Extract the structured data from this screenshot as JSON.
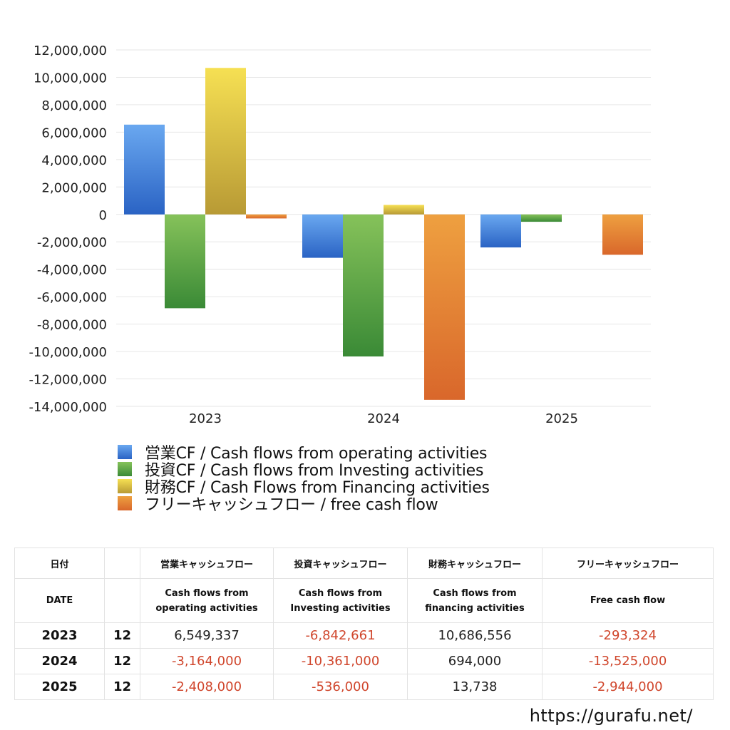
{
  "chart_data": {
    "type": "bar",
    "categories": [
      "2023",
      "2024",
      "2025"
    ],
    "ylim": [
      -14000000,
      12000000
    ],
    "yticks": [
      12000000,
      10000000,
      8000000,
      6000000,
      4000000,
      2000000,
      0,
      -2000000,
      -4000000,
      -6000000,
      -8000000,
      -10000000,
      -12000000,
      -14000000
    ],
    "grid": true,
    "legend_position": "bottom",
    "series": [
      {
        "name": "営業CF / Cash flows from operating activities",
        "values": [
          6549337,
          -3164000,
          -2408000
        ],
        "color_top": "#6aa8f0",
        "color_bottom": "#2a63c4"
      },
      {
        "name": "投資CF / Cash flows from Investing activities",
        "values": [
          -6842661,
          -10361000,
          -536000
        ],
        "color_top": "#86c25a",
        "color_bottom": "#3a8a36"
      },
      {
        "name": "財務CF / Cash Flows from Financing activities",
        "values": [
          10686556,
          694000,
          13738
        ],
        "color_top": "#f6e053",
        "color_bottom": "#b89a35"
      },
      {
        "name": "フリーキャッシュフロー / free cash flow",
        "values": [
          -293324,
          -13525000,
          -2944000
        ],
        "color_top": "#eea040",
        "color_bottom": "#d9672b"
      }
    ]
  },
  "table": {
    "header1": [
      "日付",
      "",
      "営業キャッシュフロー",
      "投資キャッシュフロー",
      "財務キャッシュフロー",
      "フリーキャッシュフロー"
    ],
    "header2": [
      "DATE",
      "",
      "Cash flows from|operating activities",
      "Cash flows from|Investing activities",
      "Cash flows from|financing activities",
      "Free cash flow"
    ],
    "rows": [
      {
        "year": "2023",
        "month": "12",
        "values": [
          "6,549,337",
          "-6,842,661",
          "10,686,556",
          "-293,324"
        ]
      },
      {
        "year": "2024",
        "month": "12",
        "values": [
          "-3,164,000",
          "-10,361,000",
          "694,000",
          "-13,525,000"
        ]
      },
      {
        "year": "2025",
        "month": "12",
        "values": [
          "-2,408,000",
          "-536,000",
          "13,738",
          "-2,944,000"
        ]
      }
    ]
  },
  "footer": {
    "url": "https://gurafu.net/"
  },
  "colors": {
    "negative": "#d0462c",
    "positive": "#222222",
    "grid": "#e6e6e6"
  }
}
